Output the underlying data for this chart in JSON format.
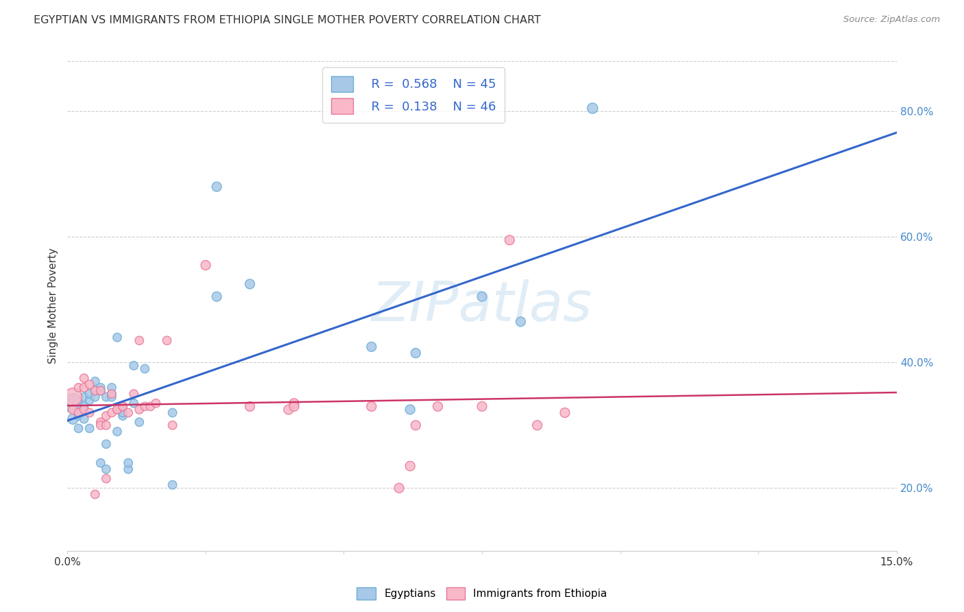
{
  "title": "EGYPTIAN VS IMMIGRANTS FROM ETHIOPIA SINGLE MOTHER POVERTY CORRELATION CHART",
  "source": "Source: ZipAtlas.com",
  "ylabel": "Single Mother Poverty",
  "watermark": "ZIPatlas",
  "legend_blue_r": "0.568",
  "legend_blue_n": "45",
  "legend_pink_r": "0.138",
  "legend_pink_n": "46",
  "blue_color": "#a8c8e8",
  "blue_edge_color": "#6baed6",
  "pink_color": "#f8b8c8",
  "pink_edge_color": "#e87898",
  "blue_line_color": "#3366cc",
  "pink_line_color": "#cc3366",
  "grid_color": "#cccccc",
  "right_tick_color": "#4488cc",
  "blue_scatter": [
    [
      0.001,
      0.335
    ],
    [
      0.001,
      0.31
    ],
    [
      0.002,
      0.295
    ],
    [
      0.002,
      0.315
    ],
    [
      0.002,
      0.32
    ],
    [
      0.003,
      0.31
    ],
    [
      0.003,
      0.345
    ],
    [
      0.003,
      0.33
    ],
    [
      0.004,
      0.295
    ],
    [
      0.004,
      0.34
    ],
    [
      0.004,
      0.35
    ],
    [
      0.005,
      0.37
    ],
    [
      0.005,
      0.345
    ],
    [
      0.005,
      0.355
    ],
    [
      0.006,
      0.355
    ],
    [
      0.006,
      0.36
    ],
    [
      0.006,
      0.24
    ],
    [
      0.007,
      0.345
    ],
    [
      0.007,
      0.27
    ],
    [
      0.007,
      0.23
    ],
    [
      0.008,
      0.35
    ],
    [
      0.008,
      0.345
    ],
    [
      0.008,
      0.36
    ],
    [
      0.009,
      0.44
    ],
    [
      0.009,
      0.325
    ],
    [
      0.009,
      0.29
    ],
    [
      0.01,
      0.315
    ],
    [
      0.01,
      0.32
    ],
    [
      0.011,
      0.23
    ],
    [
      0.011,
      0.24
    ],
    [
      0.012,
      0.335
    ],
    [
      0.012,
      0.395
    ],
    [
      0.013,
      0.305
    ],
    [
      0.014,
      0.39
    ],
    [
      0.019,
      0.32
    ],
    [
      0.019,
      0.205
    ],
    [
      0.027,
      0.68
    ],
    [
      0.027,
      0.505
    ],
    [
      0.033,
      0.525
    ],
    [
      0.055,
      0.425
    ],
    [
      0.062,
      0.325
    ],
    [
      0.063,
      0.415
    ],
    [
      0.075,
      0.505
    ],
    [
      0.082,
      0.465
    ],
    [
      0.095,
      0.805
    ]
  ],
  "pink_scatter": [
    [
      0.001,
      0.345
    ],
    [
      0.001,
      0.325
    ],
    [
      0.002,
      0.32
    ],
    [
      0.002,
      0.36
    ],
    [
      0.003,
      0.375
    ],
    [
      0.003,
      0.36
    ],
    [
      0.003,
      0.325
    ],
    [
      0.004,
      0.32
    ],
    [
      0.004,
      0.365
    ],
    [
      0.005,
      0.355
    ],
    [
      0.005,
      0.19
    ],
    [
      0.006,
      0.355
    ],
    [
      0.006,
      0.305
    ],
    [
      0.006,
      0.3
    ],
    [
      0.007,
      0.315
    ],
    [
      0.007,
      0.3
    ],
    [
      0.007,
      0.215
    ],
    [
      0.008,
      0.35
    ],
    [
      0.008,
      0.32
    ],
    [
      0.009,
      0.325
    ],
    [
      0.009,
      0.325
    ],
    [
      0.01,
      0.33
    ],
    [
      0.01,
      0.33
    ],
    [
      0.011,
      0.32
    ],
    [
      0.012,
      0.35
    ],
    [
      0.013,
      0.325
    ],
    [
      0.013,
      0.435
    ],
    [
      0.014,
      0.33
    ],
    [
      0.015,
      0.33
    ],
    [
      0.016,
      0.335
    ],
    [
      0.018,
      0.435
    ],
    [
      0.019,
      0.3
    ],
    [
      0.025,
      0.555
    ],
    [
      0.033,
      0.33
    ],
    [
      0.04,
      0.325
    ],
    [
      0.041,
      0.335
    ],
    [
      0.041,
      0.33
    ],
    [
      0.055,
      0.33
    ],
    [
      0.06,
      0.2
    ],
    [
      0.062,
      0.235
    ],
    [
      0.063,
      0.3
    ],
    [
      0.067,
      0.33
    ],
    [
      0.075,
      0.33
    ],
    [
      0.08,
      0.595
    ],
    [
      0.085,
      0.3
    ],
    [
      0.09,
      0.32
    ]
  ],
  "blue_sizes": [
    400,
    120,
    80,
    80,
    80,
    80,
    80,
    80,
    80,
    80,
    80,
    80,
    80,
    80,
    80,
    80,
    80,
    80,
    80,
    80,
    80,
    80,
    80,
    80,
    80,
    80,
    80,
    80,
    80,
    80,
    80,
    80,
    80,
    80,
    80,
    80,
    100,
    100,
    100,
    100,
    100,
    100,
    100,
    100,
    120
  ],
  "pink_sizes": [
    350,
    100,
    80,
    80,
    80,
    80,
    80,
    80,
    80,
    80,
    80,
    80,
    80,
    80,
    80,
    80,
    80,
    80,
    80,
    80,
    80,
    80,
    80,
    80,
    80,
    80,
    80,
    80,
    80,
    80,
    80,
    80,
    100,
    100,
    100,
    100,
    100,
    100,
    100,
    100,
    100,
    100,
    100,
    100,
    100,
    100
  ],
  "xmin": 0.0,
  "xmax": 0.15,
  "ymin": 0.1,
  "ymax": 0.88,
  "grid_vals": [
    0.2,
    0.4,
    0.6,
    0.8
  ],
  "xtick_positions": [
    0.0,
    0.025,
    0.05,
    0.075,
    0.1,
    0.125,
    0.15
  ],
  "figsize": [
    14.06,
    8.92
  ],
  "dpi": 100
}
